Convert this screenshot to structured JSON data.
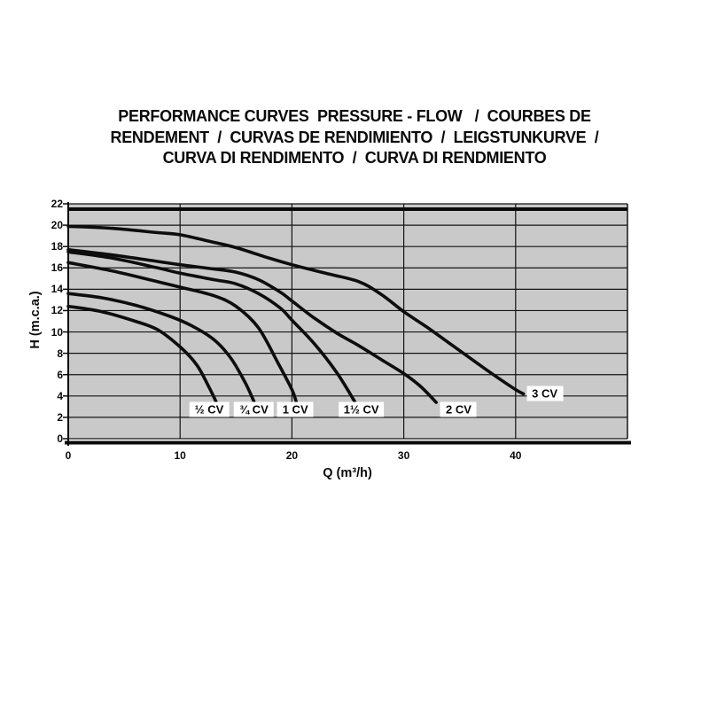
{
  "title": {
    "lines": [
      "PERFORMANCE CURVES  PRESSURE - FLOW   /  COURBES DE",
      "RENDEMENT  /  CURVAS DE RENDIMIENTO  /  LEIGSTUNKURVE  /",
      "CURVA DI RENDIMENTO  /  CURVA DI RENDMIENTO"
    ]
  },
  "chart_data": {
    "type": "line",
    "title": "Pump performance curves pressure-flow",
    "xlabel": "Q (m³/h)",
    "ylabel": "H (m.c.a.)",
    "xlim": [
      0,
      50
    ],
    "ylim": [
      0,
      22
    ],
    "x_ticks": [
      0,
      10,
      20,
      30,
      40
    ],
    "y_ticks": [
      0,
      2,
      4,
      6,
      8,
      10,
      12,
      14,
      16,
      18,
      20,
      22
    ],
    "grid": true,
    "legend_position": "labels-on-chart",
    "plot_bg": "#c9c9c9",
    "grid_color": "#141414",
    "curve_color": "#0d0d0d",
    "series": [
      {
        "name": "half-cv",
        "label": "½ CV",
        "label_at": [
          12.6,
          2.7
        ],
        "points": [
          [
            0,
            12.4
          ],
          [
            3,
            11.9
          ],
          [
            6,
            11.0
          ],
          [
            8,
            10.2
          ],
          [
            10,
            8.6
          ],
          [
            11.5,
            6.9
          ],
          [
            12.6,
            4.8
          ],
          [
            13.2,
            3.5
          ]
        ]
      },
      {
        "name": "three-quarter-cv",
        "label": "¾ CV",
        "label_at": [
          16.6,
          2.7
        ],
        "points": [
          [
            0,
            13.6
          ],
          [
            3,
            13.2
          ],
          [
            6,
            12.5
          ],
          [
            9,
            11.5
          ],
          [
            11,
            10.6
          ],
          [
            13,
            9.3
          ],
          [
            14.5,
            7.6
          ],
          [
            15.8,
            5.3
          ],
          [
            16.6,
            3.5
          ]
        ]
      },
      {
        "name": "one-cv",
        "label": "1 CV",
        "label_at": [
          20.3,
          2.7
        ],
        "points": [
          [
            0,
            16.5
          ],
          [
            4,
            15.7
          ],
          [
            8,
            14.7
          ],
          [
            10,
            14.2
          ],
          [
            13,
            13.4
          ],
          [
            15,
            12.4
          ],
          [
            17,
            10.4
          ],
          [
            18.8,
            7.0
          ],
          [
            20,
            4.6
          ],
          [
            20.4,
            3.4
          ]
        ]
      },
      {
        "name": "one-and-half-cv",
        "label": "1½ CV",
        "label_at": [
          26.2,
          2.7
        ],
        "points": [
          [
            0,
            17.5
          ],
          [
            4,
            16.9
          ],
          [
            8,
            16.0
          ],
          [
            10,
            15.5
          ],
          [
            13,
            14.9
          ],
          [
            15,
            14.5
          ],
          [
            17,
            13.6
          ],
          [
            19,
            12.2
          ],
          [
            20,
            11.1
          ],
          [
            22,
            8.9
          ],
          [
            24,
            6.2
          ],
          [
            25.6,
            3.5
          ]
        ]
      },
      {
        "name": "two-cv",
        "label": "2 CV",
        "label_at": [
          34.9,
          2.7
        ],
        "points": [
          [
            0,
            17.7
          ],
          [
            4,
            17.2
          ],
          [
            8,
            16.6
          ],
          [
            10,
            16.3
          ],
          [
            13,
            15.9
          ],
          [
            15,
            15.6
          ],
          [
            17,
            14.9
          ],
          [
            19,
            13.7
          ],
          [
            20,
            12.9
          ],
          [
            22,
            11.3
          ],
          [
            24,
            9.9
          ],
          [
            26,
            8.7
          ],
          [
            28,
            7.4
          ],
          [
            30,
            6.1
          ],
          [
            31.5,
            4.9
          ],
          [
            32.9,
            3.4
          ]
        ]
      },
      {
        "name": "three-cv",
        "label": "3 CV",
        "label_at": [
          42.6,
          4.2
        ],
        "points": [
          [
            0,
            19.9
          ],
          [
            4,
            19.7
          ],
          [
            8,
            19.3
          ],
          [
            10,
            19.1
          ],
          [
            13,
            18.4
          ],
          [
            15,
            17.9
          ],
          [
            18,
            16.9
          ],
          [
            20,
            16.3
          ],
          [
            23,
            15.5
          ],
          [
            26,
            14.7
          ],
          [
            28,
            13.5
          ],
          [
            30,
            11.9
          ],
          [
            32,
            10.5
          ],
          [
            34,
            9.0
          ],
          [
            36,
            7.5
          ],
          [
            38,
            6.0
          ],
          [
            40,
            4.6
          ],
          [
            40.7,
            4.2
          ]
        ]
      }
    ]
  }
}
